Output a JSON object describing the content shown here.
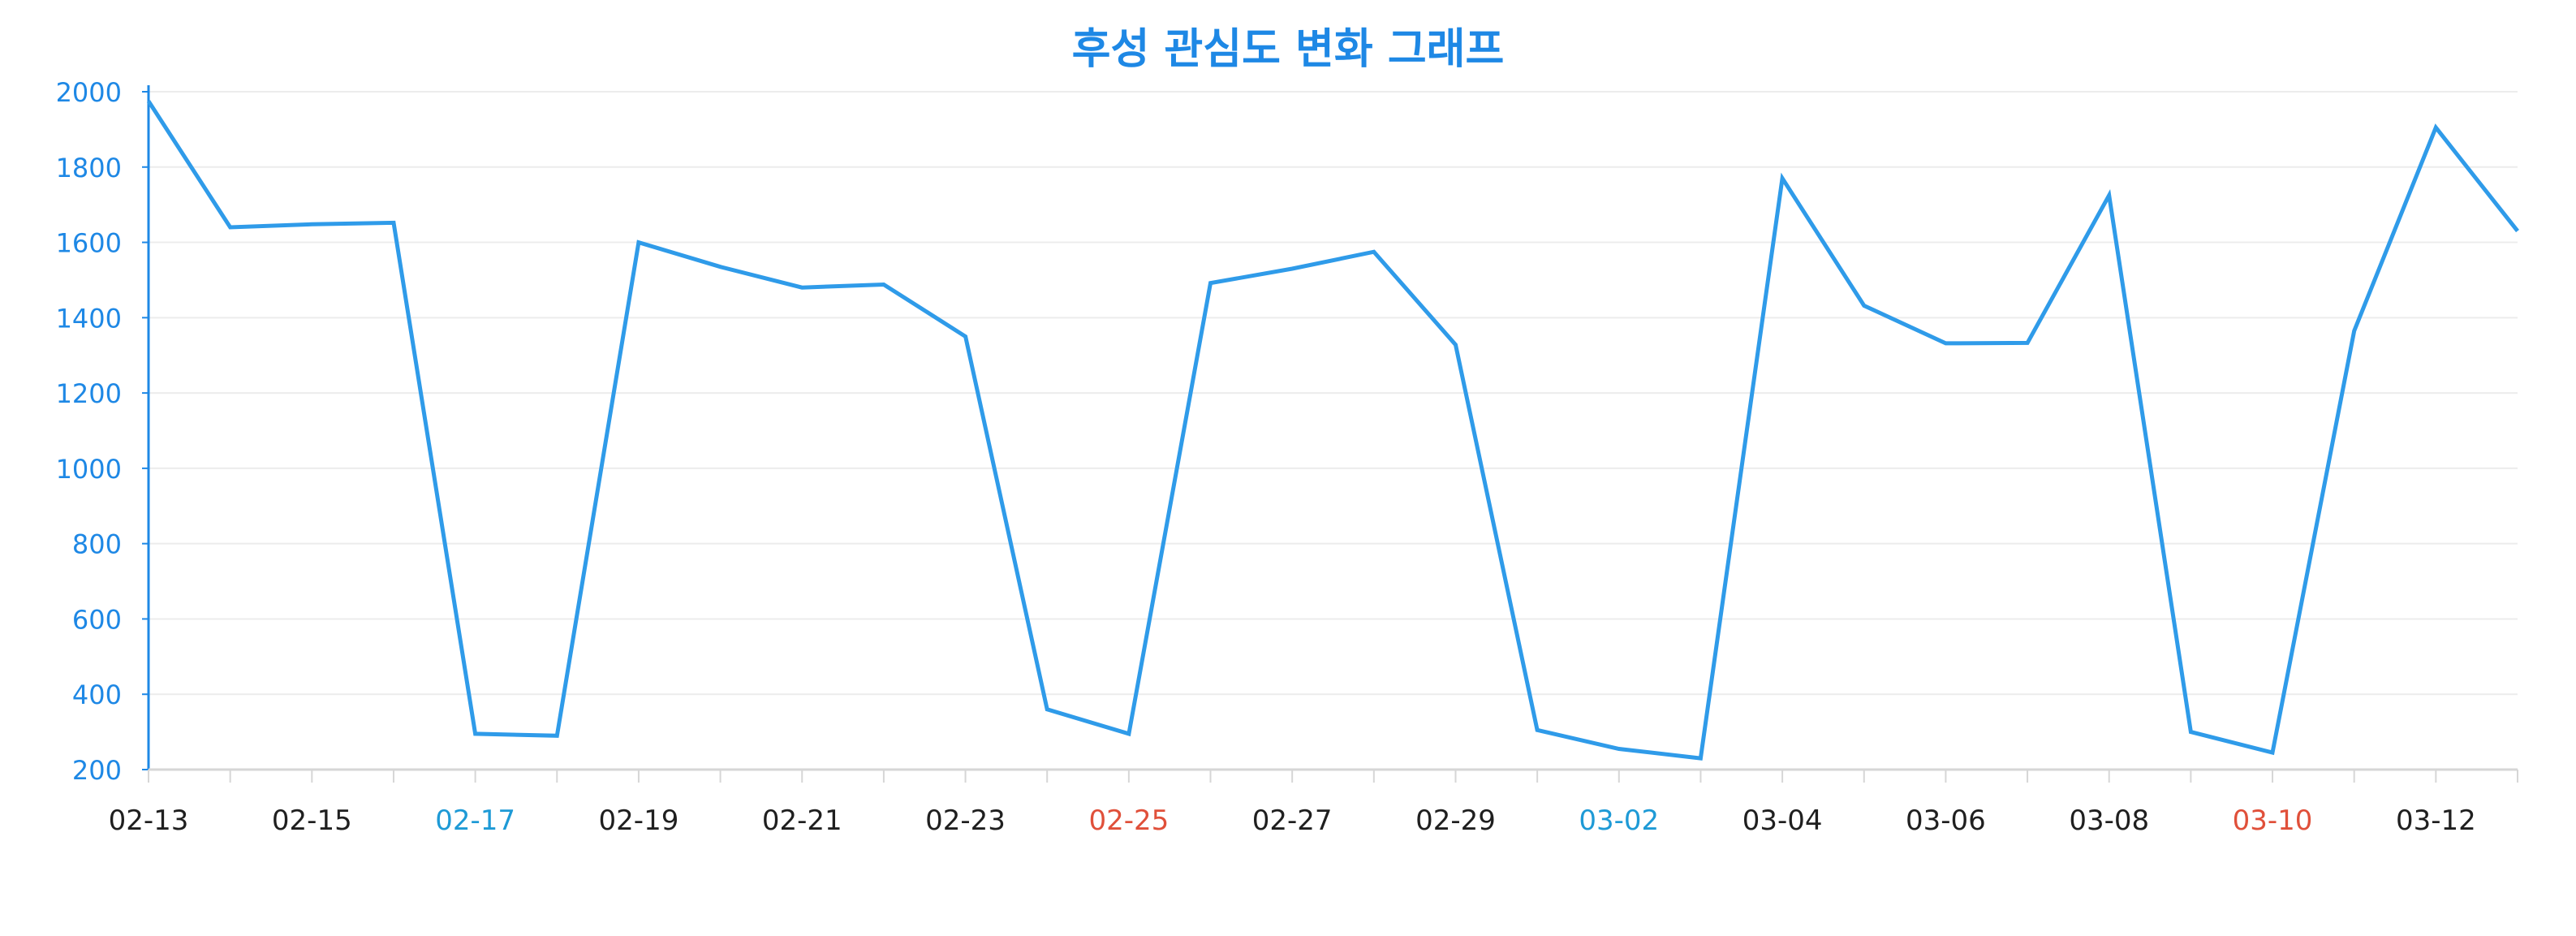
{
  "colors": {
    "title": "#1e88e5",
    "line": "#2f9be9",
    "y_axis": "#1e88e5",
    "y_tick_label": "#1e88e5",
    "x_tick_label_default": "#1f1f1f",
    "x_tick_label_saturday": "#1e9ad6",
    "x_tick_label_sunday": "#e0503a",
    "grid": "#ececec",
    "x_axis": "#d6d6d6"
  },
  "chart_data": {
    "type": "line",
    "title": "후성 관심도 변화 그래프",
    "xlabel": "",
    "ylabel": "",
    "ylim": [
      200,
      2000
    ],
    "y_ticks": [
      200,
      400,
      600,
      800,
      1000,
      1200,
      1400,
      1600,
      1800,
      2000
    ],
    "grid": true,
    "legend": "none",
    "x": [
      "02-13",
      "02-14",
      "02-15",
      "02-16",
      "02-17",
      "02-18",
      "02-19",
      "02-20",
      "02-21",
      "02-22",
      "02-23",
      "02-24",
      "02-25",
      "02-26",
      "02-27",
      "02-28",
      "02-29",
      "03-01",
      "03-02",
      "03-03",
      "03-04",
      "03-05",
      "03-06",
      "03-07",
      "03-08",
      "03-09",
      "03-10",
      "03-11",
      "03-12",
      "03-13"
    ],
    "x_tick_labels": [
      {
        "label": "02-13",
        "style": "default"
      },
      {
        "label": "02-15",
        "style": "default"
      },
      {
        "label": "02-17",
        "style": "saturday"
      },
      {
        "label": "02-19",
        "style": "default"
      },
      {
        "label": "02-21",
        "style": "default"
      },
      {
        "label": "02-23",
        "style": "default"
      },
      {
        "label": "02-25",
        "style": "sunday"
      },
      {
        "label": "02-27",
        "style": "default"
      },
      {
        "label": "02-29",
        "style": "default"
      },
      {
        "label": "03-02",
        "style": "saturday"
      },
      {
        "label": "03-04",
        "style": "default"
      },
      {
        "label": "03-06",
        "style": "default"
      },
      {
        "label": "03-08",
        "style": "default"
      },
      {
        "label": "03-10",
        "style": "sunday"
      },
      {
        "label": "03-12",
        "style": "default"
      }
    ],
    "series": [
      {
        "values": [
          1975,
          1640,
          1648,
          1652,
          295,
          290,
          1600,
          1535,
          1480,
          1488,
          1350,
          360,
          295,
          1492,
          1530,
          1575,
          1328,
          305,
          255,
          230,
          1770,
          1432,
          1332,
          1333,
          1725,
          300,
          245,
          1365,
          1905,
          1630
        ]
      }
    ]
  }
}
